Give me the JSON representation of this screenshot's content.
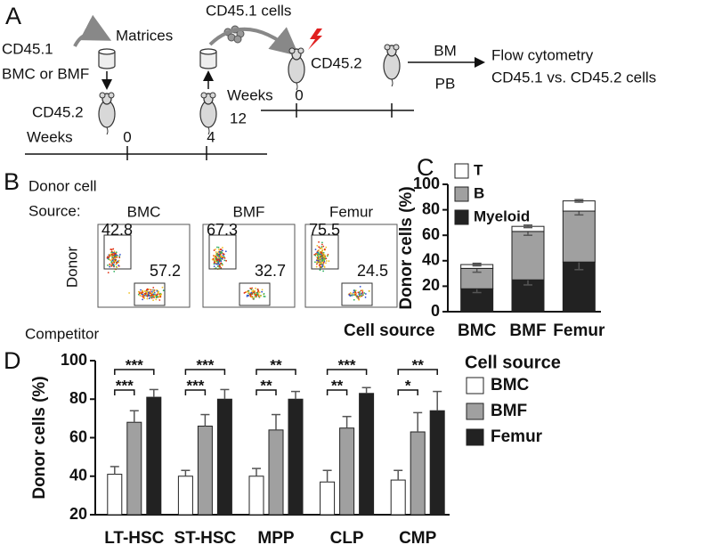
{
  "panel_labels": [
    "A",
    "B",
    "C",
    "D"
  ],
  "schematic": {
    "donor": "CD45.1",
    "donor_source": "BMC or BMF",
    "matrices": "Matrices",
    "cells": "CD45.1 cells",
    "recipients": [
      "CD45.2",
      "CD45.2"
    ],
    "timeline1": {
      "unit": "Weeks",
      "points": [
        0,
        4
      ]
    },
    "timeline2": {
      "unit": "Weeks",
      "points": [
        0,
        12
      ]
    },
    "routes": [
      "BM",
      "PB"
    ],
    "readout": [
      "Flow cytometry",
      "CD45.1 vs. CD45.2 cells"
    ]
  },
  "flow": {
    "heading": [
      "Donor cell",
      "Source:"
    ],
    "y_label": "Donor",
    "x_label": "Competitor",
    "plots": [
      {
        "source": "BMC",
        "donor": 42.8,
        "competitor": 57.2
      },
      {
        "source": "BMF",
        "donor": 67.3,
        "competitor": 32.7
      },
      {
        "source": "Femur",
        "donor": 75.5,
        "competitor": 24.5
      }
    ]
  },
  "chart_data": [
    {
      "type": "stacked-bar",
      "ylabel": "Donor cells (%)",
      "xlabel": "Cell source",
      "categories": [
        "BMC",
        "BMF",
        "Femur"
      ],
      "series": [
        {
          "name": "Myeloid",
          "color": "#222222",
          "values": [
            18,
            25,
            39
          ],
          "errors": [
            3,
            4,
            6
          ]
        },
        {
          "name": "B",
          "color": "#a0a0a0",
          "values": [
            16,
            38,
            40
          ],
          "errors": [
            3,
            3,
            3
          ]
        },
        {
          "name": "T",
          "color": "#ffffff",
          "values": [
            3,
            4,
            8
          ],
          "errors": [
            1,
            1,
            1
          ]
        }
      ],
      "ylim": [
        0,
        100
      ],
      "yticks": [
        0,
        20,
        40,
        60,
        80,
        100
      ]
    },
    {
      "type": "grouped-bar",
      "ylabel": "Donor cells (%)",
      "legend_title": "Cell source",
      "categories": [
        "LT-HSC",
        "ST-HSC",
        "MPP",
        "CLP",
        "CMP"
      ],
      "series": [
        {
          "name": "BMC",
          "color": "#ffffff",
          "values": [
            41,
            40,
            40,
            37,
            38
          ],
          "errors": [
            4,
            3,
            4,
            6,
            5
          ]
        },
        {
          "name": "BMF",
          "color": "#a0a0a0",
          "values": [
            68,
            66,
            64,
            65,
            63
          ],
          "errors": [
            6,
            6,
            8,
            6,
            10
          ]
        },
        {
          "name": "Femur",
          "color": "#222222",
          "values": [
            81,
            80,
            80,
            83,
            74
          ],
          "errors": [
            4,
            5,
            4,
            3,
            10
          ]
        }
      ],
      "significance_bmc_bmf": [
        "***",
        "***",
        "**",
        "**",
        "*"
      ],
      "significance_bmc_femur": [
        "***",
        "***",
        "**",
        "***",
        "**"
      ],
      "ylim": [
        20,
        100
      ],
      "yticks": [
        20,
        40,
        60,
        80,
        100
      ]
    }
  ]
}
